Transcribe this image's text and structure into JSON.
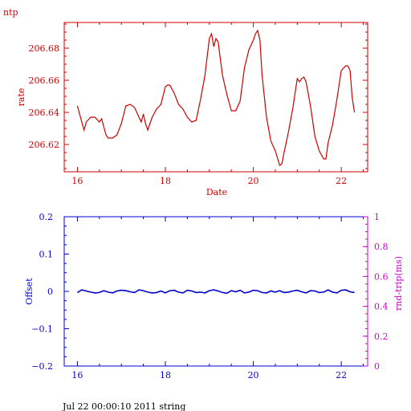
{
  "page_title": "ntp",
  "footer": "Jul 22 00:00:10 2011 string",
  "colors": {
    "rate": "#cc0000",
    "offset": "#0000cc",
    "roundtrip": "#cc00cc"
  },
  "chart_data": [
    {
      "type": "line",
      "title": "ntp",
      "xlabel": "Date",
      "ylabel": "rate",
      "xlim": [
        15.7,
        22.6
      ],
      "ylim": [
        206.603,
        206.696
      ],
      "xticks": [
        16,
        18,
        20,
        22
      ],
      "yticks": [
        206.62,
        206.64,
        206.66,
        206.68
      ],
      "ytick_labels": [
        "206.62",
        "206.64",
        "206.66",
        "206.68"
      ],
      "grid": false,
      "series": [
        {
          "x": [
            16.0,
            16.1,
            16.15,
            16.2,
            16.3,
            16.4,
            16.5,
            16.55,
            16.6,
            16.65,
            16.7,
            16.8,
            16.9,
            17.0,
            17.1,
            17.2,
            17.3,
            17.4,
            17.45,
            17.5,
            17.55,
            17.6,
            17.7,
            17.8,
            17.9,
            18.0,
            18.05,
            18.1,
            18.2,
            18.3,
            18.4,
            18.5,
            18.6,
            18.7,
            18.8,
            18.9,
            19.0,
            19.05,
            19.1,
            19.15,
            19.2,
            19.3,
            19.4,
            19.5,
            19.6,
            19.7,
            19.8,
            19.9,
            20.0,
            20.05,
            20.1,
            20.15,
            20.2,
            20.3,
            20.4,
            20.5,
            20.6,
            20.65,
            20.7,
            20.8,
            20.9,
            21.0,
            21.05,
            21.1,
            21.15,
            21.2,
            21.3,
            21.4,
            21.5,
            21.6,
            21.65,
            21.7,
            21.8,
            21.9,
            22.0,
            22.1,
            22.15,
            22.2,
            22.25,
            22.3
          ],
          "y": [
            206.644,
            206.634,
            206.629,
            206.634,
            206.637,
            206.637,
            206.634,
            206.636,
            206.631,
            206.626,
            206.624,
            206.624,
            206.626,
            206.633,
            206.644,
            206.645,
            206.643,
            206.637,
            206.634,
            206.639,
            206.633,
            206.629,
            206.637,
            206.642,
            206.645,
            206.656,
            206.657,
            206.657,
            206.652,
            206.645,
            206.642,
            206.637,
            206.634,
            206.635,
            206.648,
            206.663,
            206.686,
            206.689,
            206.681,
            206.686,
            206.684,
            206.663,
            206.651,
            206.641,
            206.641,
            206.647,
            206.668,
            206.679,
            206.685,
            206.689,
            206.691,
            206.685,
            206.663,
            206.637,
            206.622,
            206.616,
            206.607,
            206.608,
            206.615,
            206.628,
            206.643,
            206.661,
            206.659,
            206.661,
            206.662,
            206.659,
            206.644,
            206.625,
            206.616,
            206.611,
            206.611,
            206.621,
            206.632,
            206.648,
            206.666,
            206.669,
            206.669,
            206.666,
            206.649,
            206.64
          ]
        }
      ]
    },
    {
      "type": "line",
      "xlabel": "",
      "ylabel": "Offset",
      "y2label": "rnd-trip(ms)",
      "xlim": [
        15.7,
        22.6
      ],
      "ylim": [
        -0.2,
        0.2
      ],
      "y2lim": [
        0,
        1
      ],
      "xticks": [
        16,
        18,
        20,
        22
      ],
      "yticks": [
        -0.2,
        -0.1,
        0,
        0.1,
        0.2
      ],
      "ytick_labels": [
        "−0.2",
        "−0.1",
        "0",
        "0.1",
        "0.2"
      ],
      "y2ticks": [
        0,
        0.2,
        0.4,
        0.6,
        0.8,
        1
      ],
      "y2tick_labels": [
        "0",
        "0.2",
        "0.4",
        "0.6",
        "0.8",
        "1"
      ],
      "grid": false,
      "series": [
        {
          "x": [
            16.0,
            16.1,
            16.2,
            16.3,
            16.4,
            16.5,
            16.6,
            16.7,
            16.8,
            16.9,
            17.0,
            17.1,
            17.2,
            17.3,
            17.4,
            17.5,
            17.6,
            17.7,
            17.8,
            17.9,
            18.0,
            18.1,
            18.2,
            18.3,
            18.4,
            18.5,
            18.6,
            18.7,
            18.8,
            18.9,
            19.0,
            19.1,
            19.2,
            19.3,
            19.4,
            19.5,
            19.6,
            19.7,
            19.8,
            19.9,
            20.0,
            20.1,
            20.2,
            20.3,
            20.4,
            20.5,
            20.6,
            20.7,
            20.8,
            20.9,
            21.0,
            21.1,
            21.2,
            21.3,
            21.4,
            21.5,
            21.6,
            21.7,
            21.8,
            21.9,
            22.0,
            22.1,
            22.2,
            22.3
          ],
          "y": [
            -0.003,
            0.004,
            0.001,
            -0.002,
            -0.004,
            -0.003,
            0.002,
            -0.002,
            -0.004,
            0.001,
            0.003,
            0.002,
            -0.001,
            -0.003,
            0.004,
            0.002,
            -0.002,
            -0.004,
            -0.003,
            0.001,
            -0.004,
            0.002,
            0.003,
            -0.002,
            -0.004,
            0.003,
            0.001,
            -0.003,
            -0.002,
            -0.004,
            0.002,
            0.004,
            0.001,
            -0.003,
            -0.005,
            0.002,
            -0.001,
            0.003,
            -0.004,
            -0.002,
            0.003,
            0.002,
            -0.003,
            -0.004,
            0.001,
            -0.002,
            0.002,
            -0.003,
            -0.002,
            0.001,
            0.003,
            -0.001,
            -0.004,
            0.002,
            0.001,
            -0.003,
            -0.002,
            0.004,
            -0.002,
            -0.004,
            0.003,
            0.004,
            -0.001,
            -0.003
          ]
        }
      ]
    }
  ]
}
